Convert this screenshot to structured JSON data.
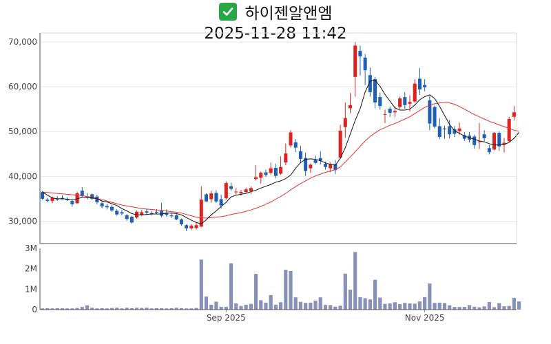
{
  "title": {
    "icon": "check-mark-icon",
    "name": "하이젠알앤엠",
    "datetime": "2025-11-28 11:42"
  },
  "colors": {
    "up": "#dd2222",
    "down": "#1f5fb4",
    "ma_short": "#111111",
    "ma_long": "#e83030",
    "volume": "#8891b8",
    "check_bg": "#28a745"
  },
  "chart_data": {
    "type": "candlestick",
    "price_axis": {
      "range": [
        25000,
        72000
      ],
      "ticks": [
        30000,
        40000,
        50000,
        60000,
        70000
      ],
      "tick_labels": [
        "30,000",
        "40,000",
        "50,000",
        "60,000",
        "70,000"
      ]
    },
    "volume_axis": {
      "range": [
        0,
        3000000
      ],
      "ticks": [
        0,
        1000000,
        2000000,
        3000000
      ],
      "tick_labels": [
        "0",
        "1M",
        "2M",
        "3M"
      ]
    },
    "x_ticks": [
      {
        "label": "Sep 2025",
        "index": 37
      },
      {
        "label": "Nov 2025",
        "index": 77
      }
    ],
    "candles": [
      [
        36500,
        36700,
        34800,
        35000
      ],
      [
        34800,
        35200,
        34200,
        34500
      ],
      [
        34500,
        35500,
        34000,
        35200
      ],
      [
        35000,
        35600,
        34500,
        34800
      ],
      [
        35200,
        35800,
        34800,
        35000
      ],
      [
        35000,
        35300,
        34500,
        34700
      ],
      [
        34500,
        34900,
        33200,
        33800
      ],
      [
        34000,
        36500,
        33900,
        36200
      ],
      [
        36800,
        37600,
        35400,
        35600
      ],
      [
        35500,
        36300,
        34900,
        35300
      ],
      [
        36000,
        36200,
        34700,
        35000
      ],
      [
        35500,
        35900,
        33800,
        34200
      ],
      [
        34000,
        34500,
        32900,
        33300
      ],
      [
        33400,
        33900,
        32600,
        33100
      ],
      [
        33200,
        33600,
        32100,
        32400
      ],
      [
        32300,
        32700,
        31200,
        31500
      ],
      [
        32000,
        32500,
        31300,
        31700
      ],
      [
        31300,
        31600,
        30100,
        30500
      ],
      [
        31000,
        31200,
        29400,
        29700
      ],
      [
        30800,
        32400,
        30500,
        32100
      ],
      [
        31400,
        32500,
        31100,
        32000
      ],
      [
        32200,
        32700,
        31400,
        31900
      ],
      [
        31800,
        32300,
        31300,
        31600
      ],
      [
        32100,
        32700,
        31500,
        31900
      ],
      [
        32300,
        34100,
        30800,
        31200
      ],
      [
        31900,
        32600,
        31000,
        31400
      ],
      [
        31300,
        31900,
        30700,
        31100
      ],
      [
        31300,
        31600,
        30200,
        30400
      ],
      [
        30400,
        30600,
        29000,
        29300
      ],
      [
        29100,
        29300,
        27800,
        28400
      ],
      [
        28400,
        29300,
        28000,
        29000
      ],
      [
        28500,
        29800,
        28100,
        29100
      ],
      [
        28800,
        37800,
        28600,
        34800
      ],
      [
        36000,
        36200,
        34300,
        34400
      ],
      [
        34900,
        36800,
        34100,
        36200
      ],
      [
        36300,
        36900,
        34100,
        34400
      ],
      [
        34900,
        35900,
        32800,
        33500
      ],
      [
        35100,
        38900,
        34800,
        38500
      ],
      [
        37800,
        38600,
        36800,
        37200
      ],
      [
        36500,
        37400,
        35900,
        36600
      ],
      [
        36200,
        37000,
        35700,
        36500
      ],
      [
        36500,
        37500,
        36200,
        37100
      ],
      [
        36700,
        37800,
        36000,
        37400
      ],
      [
        39400,
        42500,
        39100,
        39800
      ],
      [
        39700,
        41100,
        38400,
        40800
      ],
      [
        40900,
        41500,
        39900,
        40300
      ],
      [
        40800,
        43100,
        40400,
        41800
      ],
      [
        41900,
        42800,
        39500,
        40100
      ],
      [
        40600,
        44500,
        40300,
        42100
      ],
      [
        43100,
        47300,
        42500,
        45100
      ],
      [
        46900,
        50300,
        46400,
        49800
      ],
      [
        47600,
        48300,
        45400,
        46400
      ],
      [
        45600,
        46800,
        42900,
        43900
      ],
      [
        44100,
        45300,
        40100,
        41200
      ],
      [
        41800,
        42900,
        40800,
        42600
      ],
      [
        43600,
        44600,
        42700,
        43000
      ],
      [
        44100,
        45600,
        42600,
        43500
      ],
      [
        42800,
        43300,
        41500,
        42100
      ],
      [
        41800,
        43100,
        40900,
        42700
      ],
      [
        42700,
        43700,
        40500,
        41400
      ],
      [
        44200,
        51500,
        44100,
        50200
      ],
      [
        51000,
        56500,
        48600,
        53000
      ],
      [
        55200,
        58600,
        54100,
        55900
      ],
      [
        62200,
        70000,
        57800,
        69200
      ],
      [
        68000,
        69200,
        62500,
        66800
      ],
      [
        66500,
        67300,
        60400,
        63700
      ],
      [
        62600,
        64300,
        57800,
        58800
      ],
      [
        61700,
        62200,
        55200,
        56500
      ],
      [
        57700,
        58700,
        54900,
        55700
      ],
      [
        53800,
        54900,
        51900,
        53900
      ],
      [
        55100,
        55600,
        53300,
        54200
      ],
      [
        54300,
        55500,
        53200,
        54600
      ],
      [
        55500,
        57800,
        55100,
        57400
      ],
      [
        57700,
        58800,
        55100,
        55900
      ],
      [
        56200,
        58100,
        54500,
        56600
      ],
      [
        56700,
        61700,
        56400,
        60700
      ],
      [
        61800,
        64200,
        58200,
        59400
      ],
      [
        60400,
        61700,
        59000,
        59900
      ],
      [
        57000,
        58000,
        50300,
        51800
      ],
      [
        55500,
        55800,
        50700,
        51100
      ],
      [
        51200,
        53000,
        48300,
        48800
      ],
      [
        50700,
        51300,
        48400,
        50500
      ],
      [
        51200,
        52600,
        48500,
        49400
      ],
      [
        50500,
        51200,
        48800,
        49500
      ],
      [
        50100,
        52000,
        49300,
        50700
      ],
      [
        49200,
        49900,
        47900,
        48400
      ],
      [
        49100,
        49900,
        47600,
        48200
      ],
      [
        48900,
        49300,
        46200,
        47000
      ],
      [
        47700,
        51900,
        46100,
        47800
      ],
      [
        49400,
        50300,
        47800,
        48500
      ],
      [
        46300,
        47000,
        44900,
        45400
      ],
      [
        46000,
        49900,
        45800,
        49700
      ],
      [
        49700,
        50000,
        45700,
        46700
      ],
      [
        47100,
        48600,
        45300,
        47500
      ],
      [
        47900,
        53300,
        47600,
        52800
      ],
      [
        53300,
        55700,
        52500,
        54300
      ]
    ],
    "ma_short": [
      36500,
      35800,
      35200,
      35000,
      35000,
      34900,
      34700,
      35000,
      35300,
      35300,
      35200,
      35000,
      34500,
      34300,
      33900,
      33500,
      32800,
      32300,
      31700,
      31400,
      31400,
      31500,
      31600,
      31600,
      31600,
      31800,
      31800,
      31700,
      31400,
      30800,
      30200,
      29700,
      29400,
      30300,
      31400,
      32300,
      33300,
      34200,
      35400,
      35800,
      36000,
      36200,
      36600,
      36900,
      37400,
      37800,
      38200,
      38700,
      39000,
      39500,
      40300,
      41800,
      43100,
      43800,
      43900,
      43800,
      43500,
      43000,
      42700,
      42500,
      44000,
      46400,
      49400,
      52500,
      55100,
      58800,
      61300,
      61500,
      60100,
      58300,
      56800,
      55300,
      54800,
      54800,
      55000,
      55900,
      57100,
      57800,
      58200,
      57400,
      55600,
      53600,
      51600,
      50200,
      49600,
      49000,
      48600,
      48300,
      47900,
      47700,
      47300,
      47000,
      47000,
      47100,
      47600,
      48500,
      49800
    ],
    "ma_long": [
      36500,
      36400,
      36300,
      36200,
      36100,
      36000,
      35900,
      35800,
      35700,
      35500,
      35300,
      35100,
      34800,
      34500,
      34200,
      33900,
      33600,
      33400,
      33200,
      33000,
      32800,
      32700,
      32600,
      32500,
      32400,
      32300,
      32100,
      32000,
      31800,
      31500,
      31200,
      30900,
      30700,
      30700,
      30800,
      30900,
      31000,
      31200,
      31500,
      31700,
      31900,
      32200,
      32500,
      32900,
      33300,
      33800,
      34300,
      34900,
      35500,
      36200,
      37000,
      37700,
      38400,
      39000,
      39600,
      40100,
      40500,
      40900,
      41200,
      41500,
      42100,
      43200,
      44300,
      45500,
      46700,
      47900,
      48900,
      49700,
      50400,
      50900,
      51400,
      51800,
      52300,
      52800,
      53300,
      54000,
      54700,
      55400,
      55900,
      56200,
      56400,
      56500,
      56400,
      56100,
      55600,
      55000,
      54400,
      53800,
      53300,
      52800,
      52300,
      51900,
      51500,
      51100,
      50700,
      50300,
      50100
    ],
    "volume": [
      60000,
      70000,
      60000,
      70000,
      70000,
      60000,
      60000,
      80000,
      130000,
      210000,
      90000,
      60000,
      70000,
      60000,
      80000,
      90000,
      60000,
      90000,
      70000,
      90000,
      80000,
      90000,
      60000,
      70000,
      70000,
      60000,
      70000,
      90000,
      70000,
      60000,
      60000,
      80000,
      2450000,
      640000,
      240000,
      390000,
      140000,
      140000,
      2270000,
      300000,
      180000,
      240000,
      280000,
      1750000,
      460000,
      340000,
      710000,
      240000,
      360000,
      1950000,
      1890000,
      600000,
      380000,
      330000,
      340000,
      440000,
      600000,
      230000,
      220000,
      140000,
      190000,
      1760000,
      970000,
      2820000,
      610000,
      560000,
      500000,
      1460000,
      590000,
      280000,
      300000,
      360000,
      270000,
      330000,
      300000,
      290000,
      400000,
      610000,
      1280000,
      330000,
      340000,
      320000,
      210000,
      130000,
      130000,
      130000,
      220000,
      140000,
      110000,
      160000,
      370000,
      120000,
      320000,
      160000,
      180000,
      580000,
      400000
    ]
  }
}
